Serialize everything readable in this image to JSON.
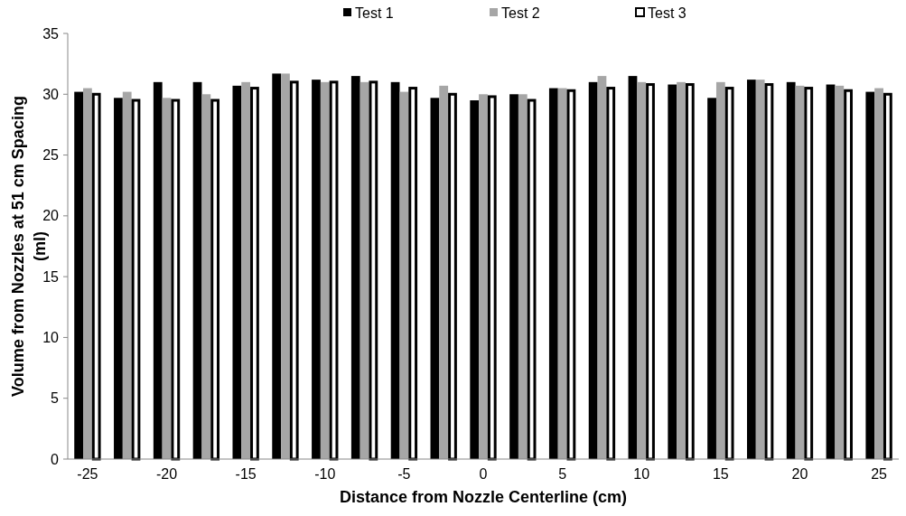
{
  "chart_data": {
    "type": "bar",
    "xlabel": "Distance from Nozzle Centerline (cm)",
    "ylabel": "Volume from Nozzles at 51 cm Spacing (ml)",
    "categories": [
      "-25",
      null,
      "-20",
      null,
      "-15",
      null,
      "-10",
      null,
      "-5",
      null,
      "0",
      null,
      "5",
      null,
      "10",
      null,
      "15",
      null,
      "20",
      null,
      "25"
    ],
    "series": [
      {
        "name": "Test 1",
        "color": "#000000",
        "values": [
          30.2,
          29.7,
          31.0,
          31.0,
          30.7,
          31.7,
          31.2,
          31.5,
          31.0,
          29.7,
          29.5,
          30.0,
          30.5,
          31.0,
          31.5,
          30.8,
          29.7,
          31.2,
          31.0,
          30.8,
          30.2
        ]
      },
      {
        "name": "Test 2",
        "color": "#a6a6a6",
        "values": [
          30.5,
          30.2,
          29.7,
          30.0,
          31.0,
          31.7,
          31.0,
          31.0,
          30.2,
          30.7,
          30.0,
          30.0,
          30.5,
          31.5,
          31.0,
          31.0,
          31.0,
          31.2,
          30.7,
          30.7,
          30.5
        ]
      },
      {
        "name": "Test 3",
        "color": "#ffffff",
        "values": [
          30.0,
          29.5,
          29.5,
          29.5,
          30.5,
          31.0,
          31.0,
          31.0,
          30.5,
          30.0,
          29.8,
          29.5,
          30.3,
          30.5,
          30.8,
          30.8,
          30.5,
          30.8,
          30.5,
          30.3,
          30.0
        ]
      }
    ],
    "ylim": [
      0,
      35
    ],
    "yticks": [
      0,
      5,
      10,
      15,
      20,
      25,
      30,
      35
    ],
    "legend": "top",
    "grid": false
  }
}
